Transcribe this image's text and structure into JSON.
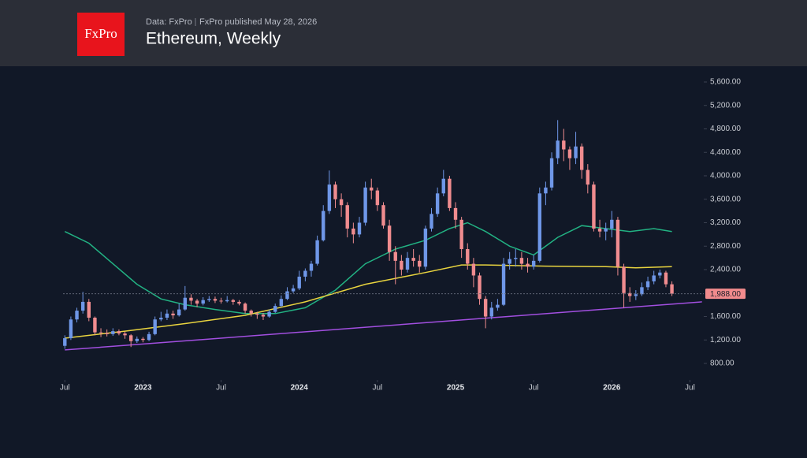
{
  "header": {
    "logo": "FxPro",
    "source": "Data: FxPro",
    "published": "FxPro published May 28, 2026"
  },
  "chart_data": {
    "type": "candlestick",
    "title": "Ethereum, Weekly",
    "open": [
      1100,
      1230,
      1550,
      1700,
      1850,
      1580,
      1330,
      1320,
      1300,
      1350,
      1310,
      1280,
      1180,
      1220,
      1200,
      1300,
      1550,
      1580,
      1650,
      1620,
      1720,
      1920,
      1870,
      1820,
      1880,
      1900,
      1870,
      1860,
      1880,
      1850,
      1820,
      1700,
      1650,
      1630,
      1600,
      1680,
      1780,
      1900,
      2030,
      2080,
      2280,
      2380,
      2500,
      2900,
      3400,
      3850,
      3600,
      3500,
      3100,
      3000,
      3200,
      3800,
      3750,
      3500,
      3150,
      2700,
      2550,
      2400,
      2600,
      2550,
      2450,
      3100,
      3350,
      3700,
      3950,
      3450,
      3250,
      2750,
      2500,
      2300,
      1900,
      1600,
      1750,
      1800,
      2500,
      2580,
      2600,
      2500,
      2450,
      2550,
      3700,
      3800,
      4300,
      4600,
      4450,
      4300,
      4500,
      4100,
      3850,
      3100,
      3050,
      3100,
      3250,
      2450,
      2000,
      1950,
      1980,
      2100,
      2200,
      2300,
      2350,
      2150
    ],
    "high": [
      1280,
      1600,
      1750,
      2020,
      1900,
      1600,
      1400,
      1380,
      1400,
      1380,
      1340,
      1300,
      1260,
      1250,
      1340,
      1600,
      1680,
      1720,
      1700,
      1820,
      2120,
      1980,
      1900,
      1930,
      1950,
      1940,
      1920,
      1950,
      1900,
      1880,
      1840,
      1720,
      1680,
      1660,
      1720,
      1820,
      1960,
      2100,
      2140,
      2380,
      2420,
      2550,
      2980,
      3500,
      4090,
      3900,
      3700,
      3550,
      3200,
      3300,
      3900,
      3950,
      3800,
      3550,
      3250,
      2800,
      2650,
      2700,
      2750,
      2650,
      3150,
      3450,
      3800,
      4100,
      4000,
      3550,
      3300,
      2850,
      2600,
      2350,
      1950,
      1850,
      1900,
      2600,
      2700,
      2750,
      2700,
      2600,
      2650,
      3800,
      3900,
      4400,
      4950,
      4800,
      4500,
      4750,
      4550,
      4200,
      3900,
      3250,
      3200,
      3400,
      3300,
      2500,
      2100,
      2050,
      2180,
      2280,
      2380,
      2400,
      2380,
      2200
    ],
    "low": [
      1050,
      1200,
      1500,
      1650,
      1520,
      1280,
      1250,
      1260,
      1270,
      1280,
      1220,
      1080,
      1150,
      1160,
      1180,
      1280,
      1520,
      1540,
      1560,
      1600,
      1700,
      1800,
      1760,
      1790,
      1850,
      1830,
      1820,
      1840,
      1800,
      1790,
      1650,
      1600,
      1560,
      1540,
      1580,
      1660,
      1760,
      1880,
      2000,
      2050,
      2200,
      2280,
      2470,
      2880,
      3350,
      3450,
      3300,
      2950,
      2850,
      2950,
      3150,
      3600,
      3400,
      3100,
      2550,
      2150,
      2300,
      2350,
      2450,
      2350,
      2400,
      3050,
      3300,
      3650,
      3400,
      3100,
      2600,
      2400,
      2100,
      1800,
      1400,
      1550,
      1700,
      1780,
      2400,
      2450,
      2400,
      2350,
      2400,
      2520,
      3500,
      3750,
      4200,
      4250,
      4100,
      4200,
      3950,
      3700,
      3050,
      2950,
      2900,
      2950,
      2300,
      1750,
      1850,
      1880,
      1950,
      2050,
      2150,
      2250,
      2100,
      1950
    ],
    "close": [
      1230,
      1550,
      1700,
      1850,
      1580,
      1330,
      1320,
      1300,
      1350,
      1310,
      1280,
      1180,
      1220,
      1200,
      1300,
      1550,
      1580,
      1650,
      1620,
      1720,
      1920,
      1870,
      1820,
      1880,
      1900,
      1870,
      1860,
      1880,
      1850,
      1820,
      1700,
      1650,
      1630,
      1600,
      1680,
      1780,
      1900,
      2030,
      2080,
      2280,
      2380,
      2500,
      2900,
      3400,
      3850,
      3600,
      3500,
      3100,
      3000,
      3200,
      3800,
      3750,
      3500,
      3150,
      2700,
      2550,
      2400,
      2600,
      2550,
      2450,
      3100,
      3350,
      3700,
      3950,
      3450,
      3250,
      2750,
      2500,
      2300,
      1900,
      1600,
      1750,
      1800,
      2500,
      2580,
      2600,
      2500,
      2450,
      2550,
      3700,
      3800,
      4300,
      4600,
      4450,
      4300,
      4500,
      4100,
      3850,
      3100,
      3050,
      3100,
      3250,
      2450,
      2000,
      1950,
      1980,
      2100,
      2200,
      2300,
      2350,
      2150,
      1988
    ],
    "up_color": "#6f97e8",
    "down_color": "#f08c8f",
    "xlim": [
      -0.3,
      106.3
    ],
    "xticks": [
      {
        "value": 0,
        "label": "Jul"
      },
      {
        "value": 13,
        "label": "2023"
      },
      {
        "value": 26,
        "label": "Jul"
      },
      {
        "value": 39,
        "label": "2024"
      },
      {
        "value": 52,
        "label": "Jul"
      },
      {
        "value": 65,
        "label": "2025"
      },
      {
        "value": 78,
        "label": "Jul"
      },
      {
        "value": 91,
        "label": "2026"
      },
      {
        "value": 104,
        "label": "Jul"
      }
    ],
    "ylim": [
      545,
      5815
    ],
    "yticks": [
      {
        "value": 800,
        "label": "800.00"
      },
      {
        "value": 1200,
        "label": "1,200.00"
      },
      {
        "value": 1600,
        "label": "1,600.00"
      },
      {
        "value": 2400,
        "label": "2,400.00"
      },
      {
        "value": 2800,
        "label": "2,800.00"
      },
      {
        "value": 3200,
        "label": "3,200.00"
      },
      {
        "value": 3600,
        "label": "3,600.00"
      },
      {
        "value": 4000,
        "label": "4,000.00"
      },
      {
        "value": 4400,
        "label": "4,400.00"
      },
      {
        "value": 4800,
        "label": "4,800.00"
      },
      {
        "value": 5200,
        "label": "5,200.00"
      },
      {
        "value": 5600,
        "label": "5,600.00"
      }
    ],
    "lines": [
      {
        "color": "#22b283",
        "x": [
          0,
          4,
          8,
          12,
          16,
          20,
          25,
          30,
          35,
          40,
          45,
          50,
          55,
          60,
          64,
          67,
          70,
          74,
          78,
          82,
          86,
          90,
          94,
          98,
          101
        ],
        "values": [
          3050,
          2850,
          2500,
          2150,
          1900,
          1800,
          1720,
          1650,
          1650,
          1750,
          2050,
          2500,
          2750,
          2900,
          3100,
          3200,
          3050,
          2800,
          2650,
          2950,
          3150,
          3100,
          3050,
          3100,
          3050
        ]
      },
      {
        "color": "#e9d43f",
        "x": [
          0,
          10,
          20,
          30,
          40,
          50,
          60,
          66,
          70,
          80,
          90,
          95,
          101
        ],
        "values": [
          1230,
          1350,
          1480,
          1620,
          1850,
          2150,
          2350,
          2480,
          2480,
          2460,
          2450,
          2430,
          2450
        ]
      },
      {
        "color": "#a24fe0",
        "x": [
          0,
          106
        ],
        "values": [
          1030,
          1850
        ]
      }
    ],
    "last_price": {
      "value": 1988,
      "label": "1,988.00"
    },
    "last_price_color": "#f28b8d"
  }
}
